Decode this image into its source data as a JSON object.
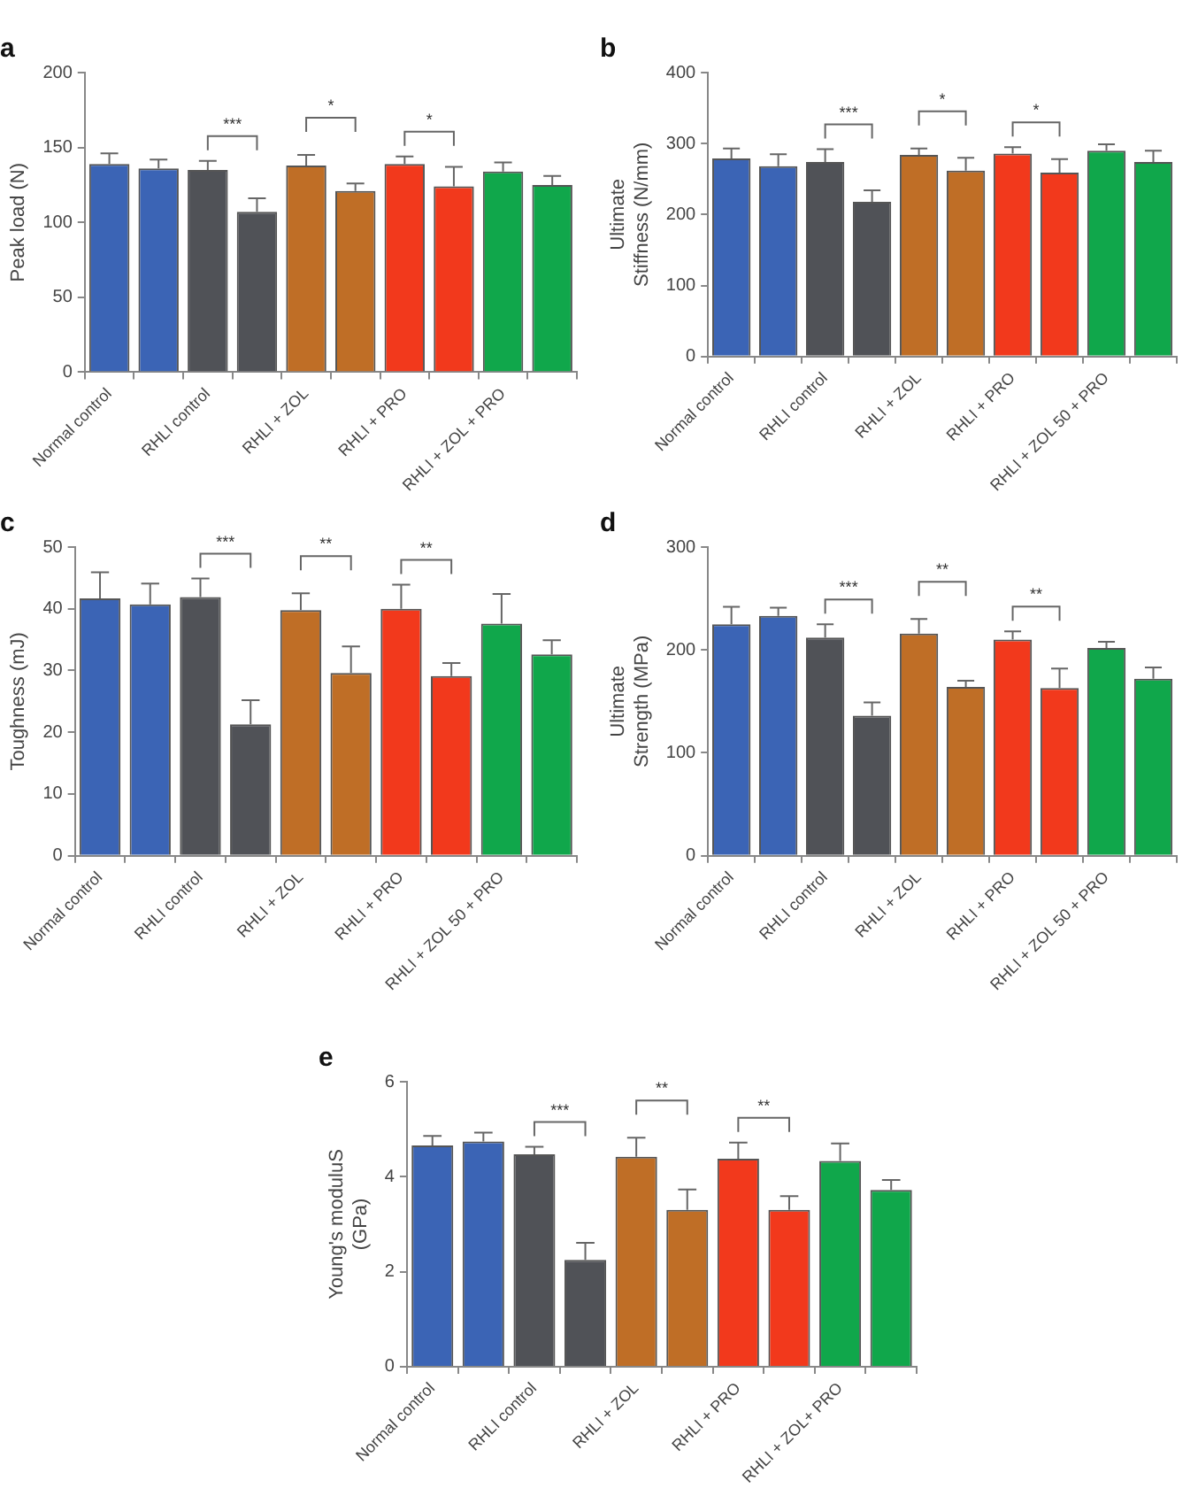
{
  "chart_data": [
    {
      "type": "bar",
      "title": "a",
      "ylabel": "Peak load (N)",
      "categories": [
        "Normal control",
        null,
        "RHLI control",
        null,
        "RHLI + ZOL",
        null,
        "RHLI + PRO",
        null,
        "RHLI + ZOL + PRO",
        null
      ],
      "values": [
        139,
        136,
        135,
        107,
        138,
        121,
        139,
        124,
        134,
        125
      ],
      "errors": [
        [
          139,
          146
        ],
        [
          136,
          142
        ],
        [
          135,
          141
        ],
        [
          107,
          116
        ],
        [
          138,
          145
        ],
        [
          121,
          126
        ],
        [
          139,
          144
        ],
        [
          124,
          137
        ],
        [
          134,
          140
        ],
        [
          125,
          131
        ]
      ],
      "colors": [
        "#3b64b5",
        "#3b64b5",
        "#505257",
        "#505257",
        "#bf6e26",
        "#bf6e26",
        "#f2391c",
        "#f2391c",
        "#10a74b",
        "#10a74b"
      ],
      "ylim": [
        0,
        200
      ],
      "yticks": [
        0,
        50,
        100,
        150,
        200
      ],
      "grid": false,
      "annotations": [
        "***",
        "*",
        "*"
      ]
    },
    {
      "type": "bar",
      "title": "b",
      "ylabel": "Ultimate\nStiffness (N/mm)",
      "categories": [
        "Normal control",
        null,
        "RHLI control",
        null,
        "RHLI + ZOL",
        null,
        "RHLI + PRO",
        null,
        "RHLI + ZOL 50 + PRO",
        null
      ],
      "values": [
        279,
        268,
        274,
        218,
        284,
        262,
        286,
        259,
        290,
        274
      ],
      "errors": [
        [
          279,
          293
        ],
        [
          268,
          285
        ],
        [
          274,
          292
        ],
        [
          218,
          234
        ],
        [
          284,
          293
        ],
        [
          262,
          280
        ],
        [
          286,
          295
        ],
        [
          259,
          278
        ],
        [
          290,
          299
        ],
        [
          274,
          290
        ]
      ],
      "colors": [
        "#3b64b5",
        "#3b64b5",
        "#505257",
        "#505257",
        "#bf6e26",
        "#bf6e26",
        "#f2391c",
        "#f2391c",
        "#10a74b",
        "#10a74b"
      ],
      "ylim": [
        0,
        400
      ],
      "yticks": [
        0,
        100,
        200,
        300,
        400
      ],
      "grid": false,
      "annotations": [
        "***",
        "*",
        "*"
      ]
    },
    {
      "type": "bar",
      "title": "c",
      "ylabel": "Toughness (mJ)",
      "categories": [
        "Normal control",
        null,
        "RHLI control",
        null,
        "RHLI + ZOL",
        null,
        "RHLI + PRO",
        null,
        "RHLI + ZOL 50 + PRO",
        null
      ],
      "values": [
        41.7,
        40.7,
        41.9,
        21.3,
        39.8,
        29.6,
        40.0,
        29.1,
        37.6,
        32.6
      ],
      "errors": [
        [
          41.7,
          45.9
        ],
        [
          40.7,
          44.1
        ],
        [
          41.9,
          44.9
        ],
        [
          21.3,
          25.2
        ],
        [
          39.8,
          42.5
        ],
        [
          29.6,
          33.9
        ],
        [
          40.0,
          43.9
        ],
        [
          29.1,
          31.2
        ],
        [
          37.6,
          42.4
        ],
        [
          32.6,
          34.9
        ]
      ],
      "colors": [
        "#3b64b5",
        "#3b64b5",
        "#505257",
        "#505257",
        "#bf6e26",
        "#bf6e26",
        "#f2391c",
        "#f2391c",
        "#10a74b",
        "#10a74b"
      ],
      "ylim": [
        0,
        50
      ],
      "yticks": [
        0,
        10,
        20,
        30,
        40,
        50
      ],
      "grid": false,
      "annotations": [
        "***",
        "**",
        "**"
      ]
    },
    {
      "type": "bar",
      "title": "d",
      "ylabel": "Ultimate\nStrength (MPa)",
      "categories": [
        "Normal control",
        null,
        "RHLI control",
        null,
        "RHLI + ZOL",
        null,
        "RHLI + PRO",
        null,
        "RHLI + ZOL 50 + PRO",
        null
      ],
      "values": [
        225,
        233,
        212,
        136,
        216,
        164,
        210,
        163,
        202,
        172
      ],
      "errors": [
        [
          225,
          242
        ],
        [
          233,
          241
        ],
        [
          212,
          225
        ],
        [
          136,
          149
        ],
        [
          216,
          230
        ],
        [
          164,
          170
        ],
        [
          210,
          218
        ],
        [
          163,
          182
        ],
        [
          202,
          208
        ],
        [
          172,
          183
        ]
      ],
      "colors": [
        "#3b64b5",
        "#3b64b5",
        "#505257",
        "#505257",
        "#bf6e26",
        "#bf6e26",
        "#f2391c",
        "#f2391c",
        "#10a74b",
        "#10a74b"
      ],
      "ylim": [
        0,
        300
      ],
      "yticks": [
        0,
        100,
        200,
        300
      ],
      "grid": false,
      "annotations": [
        "***",
        "**",
        "**"
      ]
    },
    {
      "type": "bar",
      "title": "e",
      "ylabel": "Young's moduluS\n(GPa)",
      "categories": [
        "Normal control",
        null,
        "RHLI control",
        null,
        "RHLI + ZOL",
        null,
        "RHLI + PRO",
        null,
        "RHLI + ZOL+ PRO",
        null
      ],
      "values": [
        4.66,
        4.74,
        4.47,
        2.25,
        4.42,
        3.3,
        4.38,
        3.3,
        4.33,
        3.72
      ],
      "errors": [
        [
          4.66,
          4.86
        ],
        [
          4.74,
          4.93
        ],
        [
          4.47,
          4.63
        ],
        [
          2.25,
          2.61
        ],
        [
          4.42,
          4.82
        ],
        [
          3.3,
          3.73
        ],
        [
          4.38,
          4.72
        ],
        [
          3.3,
          3.59
        ],
        [
          4.33,
          4.7
        ],
        [
          3.72,
          3.93
        ]
      ],
      "colors": [
        "#3b64b5",
        "#3b64b5",
        "#505257",
        "#505257",
        "#bf6e26",
        "#bf6e26",
        "#f2391c",
        "#f2391c",
        "#10a74b",
        "#10a74b"
      ],
      "ylim": [
        0,
        6
      ],
      "yticks": [
        0,
        2,
        4,
        6
      ],
      "grid": false,
      "annotations": [
        "***",
        "**",
        "**"
      ]
    }
  ]
}
